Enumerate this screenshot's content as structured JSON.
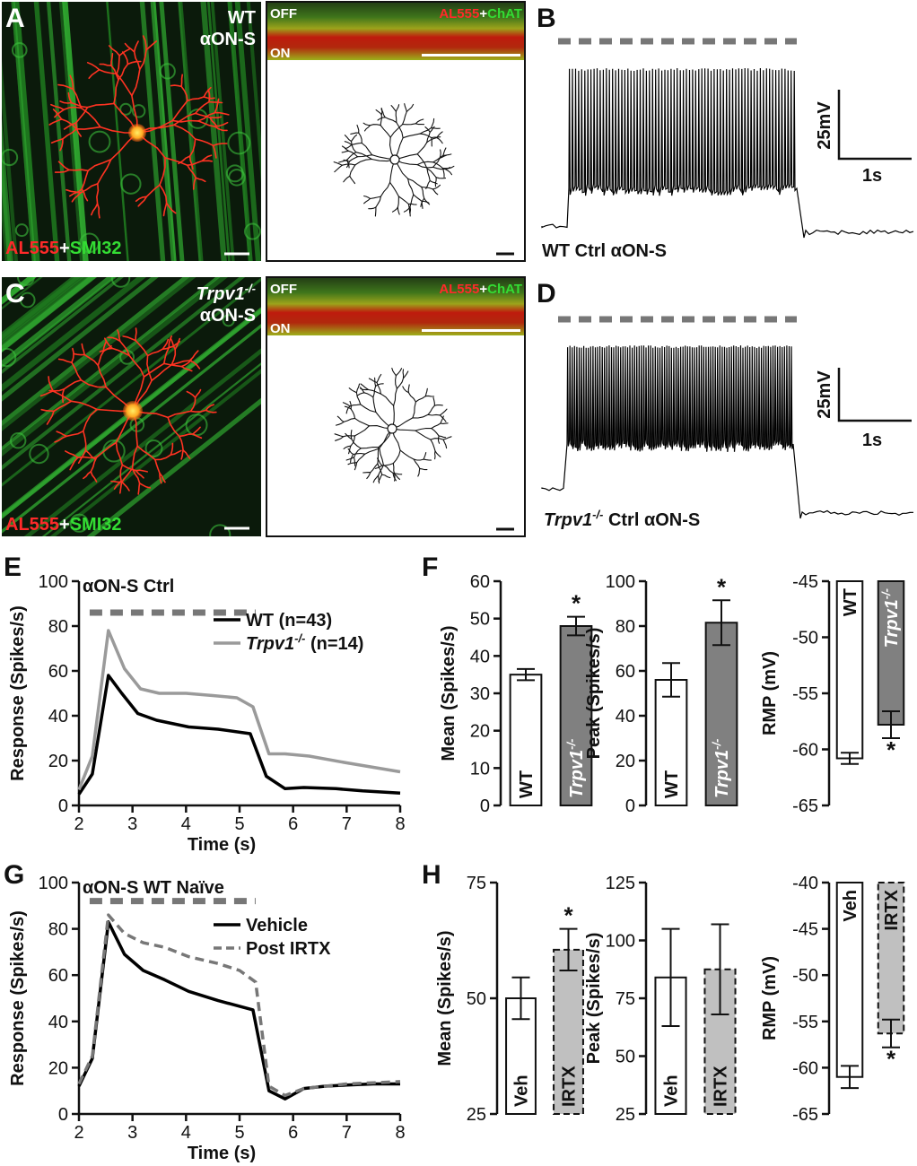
{
  "colors": {
    "wt": "#000000",
    "trpv1": "#9a9a9a",
    "vehicle": "#000000",
    "post_irtx": "#777777",
    "bar_wt": "#ffffff",
    "bar_trpv1": "#808080",
    "bar_irtx": "#c0c0c0",
    "red": "#ff2a2a",
    "green": "#33dd33",
    "stim": "#777777"
  },
  "panel_letters": {
    "A": "A",
    "B": "B",
    "C": "C",
    "D": "D",
    "E": "E",
    "F": "F",
    "G": "G",
    "H": "H"
  },
  "micrographs": {
    "A": {
      "label1": "WT",
      "label2": "αON-S",
      "stain_red": "AL555",
      "stain_plus": "+",
      "stain_green": "SMI32"
    },
    "C": {
      "label1_main": "Trpv1",
      "label1_sup": "-/-",
      "label2": "αON-S",
      "stain_red": "AL555",
      "stain_plus": "+",
      "stain_green": "SMI32"
    },
    "strip": {
      "off": "OFF",
      "on": "ON",
      "stain_red": "AL555",
      "stain_plus": "+",
      "stain_green": "ChAT"
    }
  },
  "traces": {
    "B": {
      "label": "WT Ctrl αON-S",
      "scale_v": "25mV",
      "scale_t": "1s"
    },
    "D": {
      "label_main": "Trpv1",
      "label_sup": "-/-",
      "label_rest": " Ctrl αON-S",
      "scale_v": "25mV",
      "scale_t": "1s"
    }
  },
  "chart_data": [
    {
      "panel": "E",
      "type": "line",
      "title": "αON-S Ctrl",
      "xlabel": "Time (s)",
      "ylabel": "Response (Spikes/s)",
      "xlim": [
        2,
        8
      ],
      "ylim": [
        0,
        100
      ],
      "xticks": [
        "2",
        "3",
        "4",
        "5",
        "6",
        "7",
        "8"
      ],
      "yticks": [
        "0",
        "20",
        "40",
        "60",
        "80",
        "100"
      ],
      "stimulus": [
        2.2,
        5.3
      ],
      "series": [
        {
          "name": "WT (n=43)",
          "name_main": "WT (n=43)",
          "name_sup": "",
          "name_rest": "",
          "style": "solid",
          "color": "#000000",
          "x": [
            2.0,
            2.25,
            2.55,
            2.8,
            3.1,
            3.45,
            4.05,
            4.6,
            5.2,
            5.5,
            5.85,
            6.2,
            6.8,
            7.3,
            8.0
          ],
          "y": [
            5,
            14,
            58,
            50,
            41,
            38,
            35,
            34,
            32,
            13,
            7.5,
            8,
            7.5,
            6.5,
            5.5
          ]
        },
        {
          "name": "Trpv1-/- (n=14)",
          "name_main": "Trpv1",
          "name_sup": "-/-",
          "name_rest": " (n=14)",
          "style": "solid",
          "color": "#9a9a9a",
          "x": [
            2.0,
            2.25,
            2.55,
            2.85,
            3.15,
            3.5,
            4.0,
            4.5,
            4.95,
            5.25,
            5.55,
            5.85,
            6.3,
            7.0,
            8.0
          ],
          "y": [
            7,
            22,
            78,
            61,
            52,
            50,
            50,
            49,
            48,
            44,
            23,
            23,
            22,
            19,
            15
          ]
        }
      ]
    },
    {
      "panel": "F1",
      "type": "bar",
      "ylabel": "Mean (Spikes/s)",
      "ylim": [
        0,
        60
      ],
      "yticks": [
        "0",
        "10",
        "20",
        "30",
        "40",
        "50",
        "60"
      ],
      "categories": [
        "WT",
        "Trpv1-/-"
      ],
      "category_labels": [
        {
          "main": "WT",
          "sup": ""
        },
        {
          "main": "Trpv1",
          "sup": "-/-"
        }
      ],
      "values": [
        35,
        48
      ],
      "errors": [
        1.5,
        2.5
      ],
      "significance": [
        "",
        "*"
      ]
    },
    {
      "panel": "F2",
      "type": "bar",
      "ylabel": "Peak (Spikes/s)",
      "ylim": [
        0,
        100
      ],
      "yticks": [
        "0",
        "20",
        "40",
        "60",
        "80",
        "100"
      ],
      "categories": [
        "WT",
        "Trpv1-/-"
      ],
      "category_labels": [
        {
          "main": "WT",
          "sup": ""
        },
        {
          "main": "Trpv1",
          "sup": "-/-"
        }
      ],
      "values": [
        56,
        81.5
      ],
      "errors": [
        7.5,
        10
      ],
      "significance": [
        "",
        "*"
      ]
    },
    {
      "panel": "F3",
      "type": "bar",
      "ylabel": "RMP (mV)",
      "ylim": [
        -65,
        -45
      ],
      "inverted": true,
      "yticks": [
        "-65",
        "-60",
        "-55",
        "-50",
        "-45"
      ],
      "categories": [
        "WT",
        "Trpv1-/-"
      ],
      "category_labels": [
        {
          "main": "WT",
          "sup": ""
        },
        {
          "main": "Trpv1",
          "sup": "-/-"
        }
      ],
      "values": [
        -60.8,
        -57.8
      ],
      "errors": [
        0.5,
        1.2
      ],
      "significance": [
        "",
        "*"
      ]
    },
    {
      "panel": "G",
      "type": "line",
      "title": "αON-S WT Naïve",
      "xlabel": "Time (s)",
      "ylabel": "Response (Spikes/s)",
      "xlim": [
        2,
        8
      ],
      "ylim": [
        0,
        100
      ],
      "xticks": [
        "2",
        "3",
        "4",
        "5",
        "6",
        "7",
        "8"
      ],
      "yticks": [
        "0",
        "20",
        "40",
        "60",
        "80",
        "100"
      ],
      "stimulus": [
        2.2,
        5.3
      ],
      "series": [
        {
          "name": "Vehicle",
          "name_main": "Vehicle",
          "name_sup": "",
          "name_rest": "",
          "style": "solid",
          "color": "#000000",
          "x": [
            2.0,
            2.25,
            2.55,
            2.85,
            3.2,
            3.6,
            4.05,
            4.6,
            5.25,
            5.55,
            5.85,
            6.2,
            6.6,
            7.0,
            7.5,
            8.0
          ],
          "y": [
            12,
            24,
            83,
            69,
            62,
            58,
            53,
            49,
            45,
            10,
            6.5,
            11,
            12,
            12.5,
            13,
            13
          ]
        },
        {
          "name": "Post IRTX",
          "name_main": "Post IRTX",
          "name_sup": "",
          "name_rest": "",
          "style": "dashed",
          "color": "#777777",
          "x": [
            2.0,
            2.25,
            2.55,
            2.85,
            3.2,
            3.6,
            4.05,
            4.6,
            5.0,
            5.3,
            5.55,
            5.85,
            6.2,
            6.6,
            7.0,
            7.5,
            8.0
          ],
          "y": [
            13,
            25,
            86,
            78,
            74,
            72,
            68,
            65,
            62,
            57,
            12,
            8,
            11,
            12,
            13,
            13.5,
            14
          ]
        }
      ]
    },
    {
      "panel": "H1",
      "type": "bar",
      "ylabel": "Mean (Spikes/s)",
      "ylim": [
        25,
        75
      ],
      "yticks": [
        "25",
        "50",
        "75"
      ],
      "categories": [
        "Veh",
        "IRTX"
      ],
      "category_labels": [
        {
          "main": "Veh",
          "sup": ""
        },
        {
          "main": "IRTX",
          "sup": ""
        }
      ],
      "values": [
        50,
        60.5
      ],
      "errors": [
        4.5,
        4.5
      ],
      "significance": [
        "",
        "*"
      ]
    },
    {
      "panel": "H2",
      "type": "bar",
      "ylabel": "Peak (Spikes/s)",
      "ylim": [
        25,
        125
      ],
      "yticks": [
        "25",
        "50",
        "75",
        "100",
        "125"
      ],
      "categories": [
        "Veh",
        "IRTX"
      ],
      "category_labels": [
        {
          "main": "Veh",
          "sup": ""
        },
        {
          "main": "IRTX",
          "sup": ""
        }
      ],
      "values": [
        84,
        87.5
      ],
      "errors": [
        21,
        19.5
      ],
      "significance": [
        "",
        ""
      ]
    },
    {
      "panel": "H3",
      "type": "bar",
      "ylabel": "RMP (mV)",
      "ylim": [
        -65,
        -40
      ],
      "inverted": true,
      "yticks": [
        "-65",
        "-60",
        "-55",
        "-50",
        "-45",
        "-40"
      ],
      "categories": [
        "Veh",
        "IRTX"
      ],
      "category_labels": [
        {
          "main": "Veh",
          "sup": ""
        },
        {
          "main": "IRTX",
          "sup": ""
        }
      ],
      "values": [
        -61,
        -56.3
      ],
      "errors": [
        1.2,
        1.5
      ],
      "significance": [
        "",
        "*"
      ]
    }
  ]
}
